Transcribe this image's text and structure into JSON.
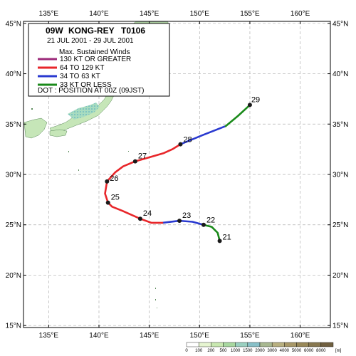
{
  "storm": {
    "id": "09W",
    "name": "KONG-REY",
    "code": "T0106",
    "period": "21 JUL 2001 - 29 JUL 2001"
  },
  "legend": {
    "title": "Max. Sustained Winds",
    "items": [
      {
        "label": "130 KT OR GREATER",
        "color": "#9c2a7a"
      },
      {
        "label": "64 TO 129 KT",
        "color": "#e8262a"
      },
      {
        "label": "34 TO 63 KT",
        "color": "#2a3ad0"
      },
      {
        "label": "33 KT OR LESS",
        "color": "#1a8a1a"
      }
    ],
    "dot_note": "DOT : POSITION AT 00Z (09JST)"
  },
  "axes": {
    "lon_ticks": [
      "135°E",
      "140°E",
      "145°E",
      "150°E",
      "155°E",
      "160°E"
    ],
    "lon_values": [
      135,
      140,
      145,
      150,
      155,
      160
    ],
    "lat_ticks": [
      "45°N",
      "40°N",
      "35°N",
      "30°N",
      "25°N",
      "20°N",
      "15°N"
    ],
    "lat_values": [
      45,
      40,
      35,
      30,
      25,
      20,
      15
    ],
    "lon_range": [
      132.5,
      163
    ],
    "lat_range": [
      14.8,
      45.2
    ]
  },
  "track": {
    "segments": [
      {
        "category": "33 KT OR LESS",
        "color": "#1a8a1a",
        "points": [
          [
            152.0,
            23.4
          ],
          [
            151.8,
            24.2
          ],
          [
            151.2,
            24.8
          ],
          [
            150.4,
            25.0
          ]
        ]
      },
      {
        "category": "34 TO 63 KT",
        "color": "#2a3ad0",
        "points": [
          [
            150.4,
            25.0
          ],
          [
            149.3,
            25.3
          ],
          [
            148.0,
            25.4
          ],
          [
            146.3,
            25.2
          ]
        ]
      },
      {
        "category": "64 TO 129 KT",
        "color": "#e8262a",
        "points": [
          [
            146.3,
            25.2
          ],
          [
            145.2,
            25.2
          ],
          [
            144.1,
            25.6
          ],
          [
            142.3,
            26.4
          ],
          [
            141.3,
            26.8
          ],
          [
            140.9,
            27.2
          ],
          [
            140.6,
            28.1
          ],
          [
            140.8,
            29.3
          ],
          [
            141.6,
            30.2
          ],
          [
            142.4,
            30.8
          ],
          [
            143.6,
            31.3
          ],
          [
            145.0,
            31.7
          ],
          [
            146.4,
            32.1
          ],
          [
            147.3,
            32.5
          ],
          [
            148.1,
            33.0
          ]
        ]
      },
      {
        "category": "34 TO 63 KT",
        "color": "#2a3ad0",
        "points": [
          [
            148.1,
            33.0
          ],
          [
            150.3,
            33.9
          ],
          [
            152.6,
            34.8
          ]
        ]
      },
      {
        "category": "33 KT OR LESS",
        "color": "#1a8a1a",
        "points": [
          [
            152.6,
            34.8
          ],
          [
            153.8,
            35.8
          ],
          [
            155.0,
            36.9
          ]
        ]
      }
    ],
    "positions": [
      {
        "day": "21",
        "lon": 152.0,
        "lat": 23.4
      },
      {
        "day": "22",
        "lon": 150.4,
        "lat": 25.0
      },
      {
        "day": "23",
        "lon": 148.0,
        "lat": 25.4
      },
      {
        "day": "24",
        "lon": 144.1,
        "lat": 25.6
      },
      {
        "day": "25",
        "lon": 140.9,
        "lat": 27.2
      },
      {
        "day": "26",
        "lon": 140.8,
        "lat": 29.3
      },
      {
        "day": "27",
        "lon": 143.6,
        "lat": 31.3
      },
      {
        "day": "28",
        "lon": 148.1,
        "lat": 33.0
      },
      {
        "day": "29",
        "lon": 155.0,
        "lat": 36.9
      }
    ]
  },
  "elevation_scale": {
    "labels": [
      "0",
      "100",
      "200",
      "500",
      "1000",
      "1500",
      "2000",
      "3000",
      "4000",
      "5000",
      "6000",
      "8000"
    ],
    "colors": [
      "#ffffff",
      "#e6f5d0",
      "#c8e8b0",
      "#a8d8a0",
      "#9ad0c0",
      "#88c0c8",
      "#a8b890",
      "#b8b080",
      "#a89868",
      "#988858",
      "#887850",
      "#706040"
    ],
    "unit": "[m]"
  }
}
